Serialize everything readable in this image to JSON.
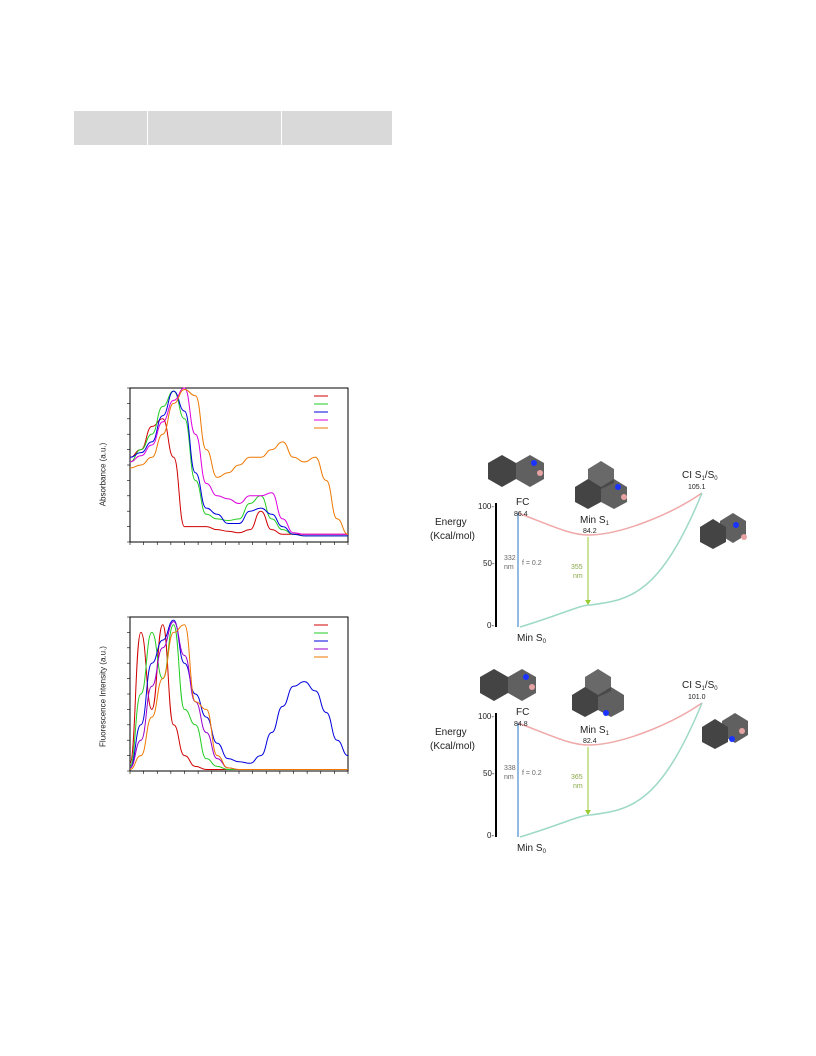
{
  "table_header": {
    "columns": [
      "",
      "",
      ""
    ]
  },
  "chart_data": [
    {
      "type": "line",
      "title": "",
      "xlabel": "",
      "ylabel": "Absorbance (a.u.)",
      "ylim": [
        0,
        1.0
      ],
      "legend": "top-right",
      "grid": false,
      "x": [
        0,
        0.05,
        0.1,
        0.15,
        0.2,
        0.25,
        0.3,
        0.35,
        0.4,
        0.45,
        0.5,
        0.55,
        0.6,
        0.65,
        0.7,
        0.75,
        0.8,
        0.85,
        0.9,
        0.95,
        1.0
      ],
      "series": [
        {
          "color": "#d00000",
          "values": [
            0.55,
            0.6,
            0.75,
            0.8,
            0.55,
            0.1,
            0.1,
            0.1,
            0.08,
            0.07,
            0.06,
            0.08,
            0.2,
            0.08,
            0.05,
            0.05,
            0.05,
            0.05,
            0.05,
            0.05,
            0.05
          ]
        },
        {
          "color": "#22cc22",
          "values": [
            0.52,
            0.6,
            0.7,
            0.88,
            0.98,
            0.8,
            0.4,
            0.18,
            0.15,
            0.14,
            0.15,
            0.25,
            0.3,
            0.15,
            0.08,
            0.05,
            0.04,
            0.04,
            0.04,
            0.04,
            0.04
          ]
        },
        {
          "color": "#0000dd",
          "values": [
            0.55,
            0.58,
            0.65,
            0.82,
            0.98,
            0.85,
            0.45,
            0.22,
            0.18,
            0.12,
            0.12,
            0.2,
            0.22,
            0.18,
            0.1,
            0.05,
            0.04,
            0.04,
            0.04,
            0.04,
            0.04
          ]
        },
        {
          "color": "#dd00dd",
          "values": [
            0.52,
            0.56,
            0.63,
            0.78,
            0.92,
            1.0,
            0.7,
            0.38,
            0.3,
            0.28,
            0.25,
            0.3,
            0.3,
            0.32,
            0.15,
            0.06,
            0.05,
            0.05,
            0.05,
            0.05,
            0.05
          ]
        },
        {
          "color": "#ee7700",
          "values": [
            0.48,
            0.5,
            0.55,
            0.7,
            0.9,
            0.99,
            0.95,
            0.6,
            0.42,
            0.45,
            0.5,
            0.55,
            0.55,
            0.6,
            0.65,
            0.55,
            0.52,
            0.55,
            0.4,
            0.15,
            0.05
          ]
        }
      ]
    },
    {
      "type": "line",
      "title": "",
      "xlabel": "",
      "ylabel": "Fluorescence Intensity (a.u.)",
      "ylim": [
        0,
        1.0
      ],
      "legend": "top-right",
      "grid": false,
      "x": [
        0,
        0.05,
        0.1,
        0.15,
        0.2,
        0.25,
        0.3,
        0.35,
        0.4,
        0.45,
        0.5,
        0.55,
        0.6,
        0.65,
        0.7,
        0.75,
        0.8,
        0.85,
        0.9,
        0.95,
        1.0
      ],
      "series": [
        {
          "color": "#d00000",
          "values": [
            0.05,
            0.9,
            0.4,
            0.95,
            0.3,
            0.1,
            0.03,
            0.01,
            0.01,
            0.01,
            0.01,
            0.01,
            0.01,
            0.01,
            0.01,
            0.01,
            0.01,
            0.01,
            0.01,
            0.01,
            0.01
          ]
        },
        {
          "color": "#22cc22",
          "values": [
            0.03,
            0.5,
            0.9,
            0.6,
            0.95,
            0.4,
            0.3,
            0.08,
            0.03,
            0.01,
            0.01,
            0.01,
            0.01,
            0.01,
            0.01,
            0.01,
            0.01,
            0.01,
            0.01,
            0.01,
            0.01
          ]
        },
        {
          "color": "#0000dd",
          "values": [
            0.02,
            0.3,
            0.7,
            0.85,
            0.98,
            0.7,
            0.5,
            0.35,
            0.18,
            0.08,
            0.06,
            0.05,
            0.1,
            0.25,
            0.42,
            0.55,
            0.58,
            0.52,
            0.38,
            0.2,
            0.1
          ]
        },
        {
          "color": "#9900cc",
          "values": [
            0.02,
            0.2,
            0.55,
            0.8,
            0.97,
            0.75,
            0.45,
            0.25,
            0.08,
            0.02,
            0.01,
            0.01,
            0.01,
            0.01,
            0.01,
            0.01,
            0.01,
            0.01,
            0.01,
            0.01,
            0.01
          ]
        },
        {
          "color": "#ee7700",
          "values": [
            0.01,
            0.1,
            0.35,
            0.6,
            0.9,
            0.95,
            0.45,
            0.4,
            0.1,
            0.02,
            0.01,
            0.01,
            0.01,
            0.01,
            0.01,
            0.01,
            0.01,
            0.01,
            0.01,
            0.01,
            0.01
          ]
        }
      ]
    }
  ],
  "energy_diagrams": [
    {
      "axis_title_line1": "Energy",
      "axis_title_line2": "(Kcal/mol)",
      "ticks": [
        "100-",
        "50-",
        "0-"
      ],
      "fc_label": "FC",
      "fc_value": "86.4",
      "min_s1_label": "Min S",
      "min_s1_sub": "1",
      "min_s1_value": "84.2",
      "ci_label": "CI S",
      "ci_sub1": "1",
      "ci_slash": "/S",
      "ci_sub0": "0",
      "ci_value": "105.1",
      "abs_nm": "332",
      "abs_unit": "nm",
      "osc": "f = 0.2",
      "em_nm": "355",
      "em_unit": "nm",
      "min_s0_label": "Min S",
      "min_s0_sub": "0"
    },
    {
      "axis_title_line1": "Energy",
      "axis_title_line2": "(Kcal/mol)",
      "ticks": [
        "100-",
        "50-",
        "0-"
      ],
      "fc_label": "FC",
      "fc_value": "84.8",
      "min_s1_label": "Min S",
      "min_s1_sub": "1",
      "min_s1_value": "82.4",
      "ci_label": "CI S",
      "ci_sub1": "1",
      "ci_slash": "/S",
      "ci_sub0": "0",
      "ci_value": "101.0",
      "abs_nm": "338",
      "abs_unit": "nm",
      "osc": "f = 0.2",
      "em_nm": "365",
      "em_unit": "nm",
      "min_s0_label": "Min S",
      "min_s0_sub": "0"
    }
  ]
}
